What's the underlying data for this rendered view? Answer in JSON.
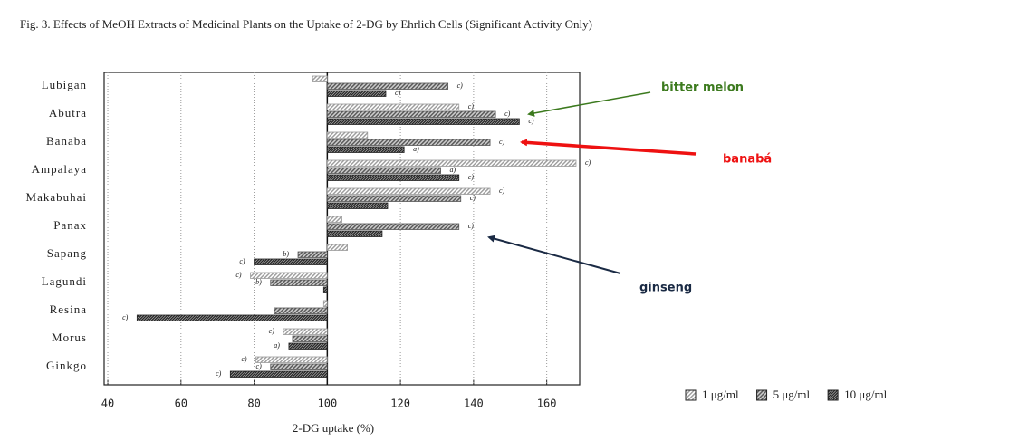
{
  "chart_data": {
    "type": "hbar",
    "title": "Fig. 3.   Effects of MeOH Extracts of Medicinal Plants on the Uptake of 2-DG by Ehrlich Cells (Significant Activity Only)",
    "x_label": "2-DG uptake (%)",
    "categories": [
      "Lubigan",
      "Abutra",
      "Banaba",
      "Ampalaya",
      "Makabuhai",
      "Panax",
      "Sapang",
      "Lagundi",
      "Resina",
      "Morus",
      "Ginkgo"
    ],
    "baseline": 100,
    "series": [
      {
        "name": "1 μg/ml",
        "color": "#9a9a9a",
        "values": [
          96,
          136,
          111,
          168,
          144.5,
          104,
          105.5,
          79,
          99,
          88,
          80.5
        ],
        "significance": [
          null,
          "c)",
          null,
          "c)",
          "c)",
          null,
          null,
          "c)",
          null,
          "c)",
          "c)"
        ]
      },
      {
        "name": "5 μg/ml",
        "color": "#555555",
        "values": [
          133,
          146,
          144.5,
          131,
          136.5,
          136,
          92,
          84.5,
          85.5,
          90.5,
          84.5
        ],
        "significance": [
          "c)",
          "c)",
          "c)",
          "a)",
          "c)",
          "c)",
          "b)",
          "b)",
          null,
          null,
          "c)"
        ]
      },
      {
        "name": "10 μg/ml",
        "color": "#222222",
        "values": [
          116,
          152.5,
          121,
          136,
          116.5,
          115,
          80,
          99,
          48,
          89.5,
          73.5
        ],
        "significance": [
          "c)",
          "c)",
          "a)",
          "c)",
          null,
          null,
          "c)",
          null,
          "c)",
          "a)",
          "c)"
        ]
      }
    ],
    "xlim": [
      39,
      169
    ],
    "xticks": [
      40,
      60,
      80,
      100,
      120,
      140,
      160
    ],
    "grid": true,
    "annotations": [
      {
        "text": "bitter melon",
        "color": "#3c7a1e"
      },
      {
        "text": "banabá",
        "color": "#ee1111"
      },
      {
        "text": "ginseng",
        "color": "#1a2a44"
      }
    ]
  }
}
